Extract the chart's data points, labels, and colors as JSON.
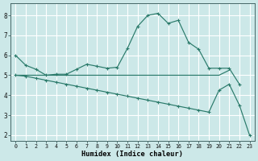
{
  "bg_color": "#cce8e8",
  "grid_color": "#ffffff",
  "line_color": "#2a7a6a",
  "xlabel": "Humidex (Indice chaleur)",
  "xlim_min": -0.5,
  "xlim_max": 23.5,
  "ylim_min": 1.7,
  "ylim_max": 8.6,
  "yticks": [
    2,
    3,
    4,
    5,
    6,
    7,
    8
  ],
  "xticks": [
    0,
    1,
    2,
    3,
    4,
    5,
    6,
    7,
    8,
    9,
    10,
    11,
    12,
    13,
    14,
    15,
    16,
    17,
    18,
    19,
    20,
    21,
    22,
    23
  ],
  "curve_peak_x": [
    0,
    1,
    2,
    3,
    4,
    5,
    6,
    7,
    8,
    9,
    10,
    11,
    12,
    13,
    14,
    15,
    16,
    17,
    18,
    19,
    20,
    21,
    22
  ],
  "curve_peak_y": [
    6.0,
    5.5,
    5.3,
    5.0,
    5.05,
    5.05,
    5.3,
    5.55,
    5.45,
    5.35,
    5.4,
    6.35,
    7.45,
    8.0,
    8.1,
    7.6,
    7.75,
    6.65,
    6.3,
    5.35,
    5.35,
    5.35,
    4.55
  ],
  "curve_flat_x": [
    0,
    1,
    2,
    3,
    4,
    5,
    6,
    7,
    8,
    9,
    10,
    11,
    12,
    13,
    14,
    15,
    16,
    17,
    18,
    19,
    20,
    21
  ],
  "curve_flat_y": [
    5.0,
    5.0,
    5.0,
    5.0,
    5.0,
    5.0,
    5.0,
    5.0,
    5.0,
    5.0,
    5.0,
    5.0,
    5.0,
    5.0,
    5.0,
    5.0,
    5.0,
    5.0,
    5.0,
    5.0,
    5.0,
    5.25
  ],
  "curve_lower_diag_x": [
    0,
    1,
    2,
    3,
    4,
    5,
    6,
    7,
    8,
    9,
    10,
    11,
    12,
    13,
    14,
    15,
    16,
    17,
    18,
    19,
    20,
    21,
    22,
    23
  ],
  "curve_lower_diag_y": [
    5.0,
    4.95,
    4.85,
    4.75,
    4.65,
    4.55,
    4.45,
    4.35,
    4.25,
    4.15,
    4.05,
    3.95,
    3.85,
    3.75,
    3.65,
    3.55,
    3.45,
    3.35,
    3.25,
    3.15,
    4.25,
    4.55,
    3.5,
    2.0
  ]
}
